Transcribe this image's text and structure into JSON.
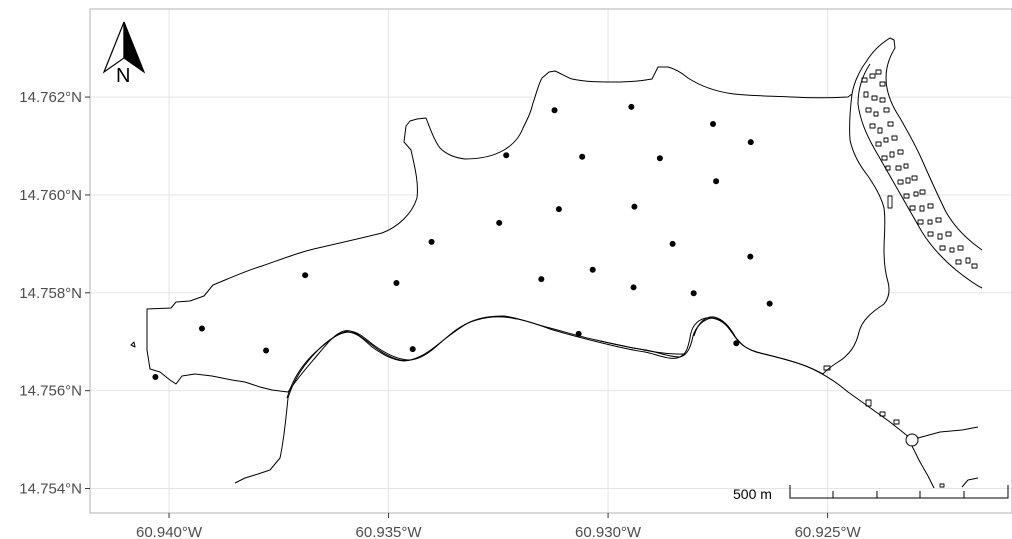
{
  "map": {
    "x_axis": {
      "range": [
        -60.9418,
        -60.9208
      ],
      "ticks": [
        {
          "value": -60.94,
          "label": "60.940°W"
        },
        {
          "value": -60.935,
          "label": "60.935°W"
        },
        {
          "value": -60.93,
          "label": "60.930°W"
        },
        {
          "value": -60.925,
          "label": "60.925°W"
        }
      ]
    },
    "y_axis": {
      "range": [
        14.7535,
        14.7638
      ],
      "ticks": [
        {
          "value": 14.762,
          "label": "14.762°N"
        },
        {
          "value": 14.76,
          "label": "14.760°N"
        },
        {
          "value": 14.758,
          "label": "14.758°N"
        },
        {
          "value": 14.756,
          "label": "14.756°N"
        },
        {
          "value": 14.754,
          "label": "14.754°N"
        }
      ]
    },
    "grid": true,
    "north_arrow": {
      "label": "N",
      "placement": "top-left"
    },
    "scale_bar": {
      "label": "500 m",
      "placement": "bottom-right"
    },
    "colors": {
      "panel_border": "#b3b3b3",
      "grid": "#e5e5e5",
      "outline": "#000000",
      "points": "#000000"
    },
    "sample_points": [
      [
        -60.94031,
        14.75628
      ],
      [
        -60.93925,
        14.75727
      ],
      [
        -60.93779,
        14.75682
      ],
      [
        -60.9369,
        14.75836
      ],
      [
        -60.93482,
        14.7582
      ],
      [
        -60.93445,
        14.75685
      ],
      [
        -60.93402,
        14.75904
      ],
      [
        -60.93232,
        14.76081
      ],
      [
        -60.93248,
        14.75943
      ],
      [
        -60.93152,
        14.75828
      ],
      [
        -60.93122,
        14.76173
      ],
      [
        -60.93112,
        14.75971
      ],
      [
        -60.93067,
        14.75716
      ],
      [
        -60.93059,
        14.76078
      ],
      [
        -60.93035,
        14.75847
      ],
      [
        -60.92947,
        14.7618
      ],
      [
        -60.9294,
        14.75976
      ],
      [
        -60.92942,
        14.75811
      ],
      [
        -60.92882,
        14.76075
      ],
      [
        -60.92853,
        14.759
      ],
      [
        -60.92805,
        14.75799
      ],
      [
        -60.92761,
        14.76145
      ],
      [
        -60.92754,
        14.76028
      ],
      [
        -60.92708,
        14.75697
      ],
      [
        -60.92675,
        14.76108
      ],
      [
        -60.92676,
        14.75874
      ],
      [
        -60.92632,
        14.75778
      ]
    ]
  }
}
